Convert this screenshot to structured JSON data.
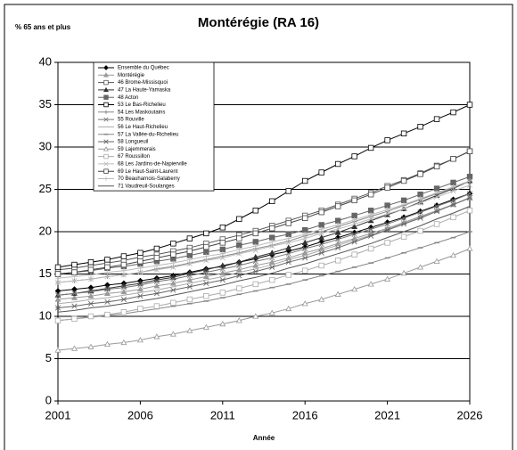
{
  "chart_data": {
    "type": "line",
    "title": "Montérégie (RA 16)",
    "y_label": "% 65 ans et plus",
    "x_label": "Année",
    "x": [
      2001,
      2002,
      2003,
      2004,
      2005,
      2006,
      2007,
      2008,
      2009,
      2010,
      2011,
      2012,
      2013,
      2014,
      2015,
      2016,
      2017,
      2018,
      2019,
      2020,
      2021,
      2022,
      2023,
      2024,
      2025,
      2026
    ],
    "xlim": [
      2001,
      2026
    ],
    "xticks": [
      2001,
      2006,
      2011,
      2016,
      2021,
      2026
    ],
    "ylim": [
      0,
      40
    ],
    "yticks": [
      0,
      5,
      10,
      15,
      20,
      25,
      30,
      35,
      40
    ],
    "grid": true,
    "legend": "upper left",
    "series": [
      {
        "name": "Ensemble du Québec",
        "color": "#000000",
        "marker": "diamond",
        "values": [
          13,
          13.2,
          13.4,
          13.7,
          13.9,
          14.2,
          14.5,
          14.8,
          15.2,
          15.6,
          15.9,
          16.4,
          16.8,
          17.3,
          17.7,
          18.2,
          18.8,
          19.3,
          19.9,
          20.5,
          21.1,
          21.7,
          22.4,
          23.1,
          23.8,
          24.5
        ]
      },
      {
        "name": "Montérégie",
        "color": "#999999",
        "marker": "triangle-filled",
        "values": [
          12,
          12.2,
          12.4,
          12.7,
          12.9,
          13.2,
          13.6,
          13.9,
          14.3,
          14.7,
          15.1,
          15.5,
          16,
          16.4,
          16.9,
          17.5,
          18,
          18.6,
          19.2,
          19.8,
          20.4,
          21.1,
          21.8,
          22.5,
          23.2,
          24
        ]
      },
      {
        "name": "46 Brome-Missisquoi",
        "color": "#555555",
        "marker": "square-dot",
        "values": [
          15.5,
          15.7,
          16,
          16.3,
          16.6,
          17,
          17.3,
          17.7,
          18.1,
          18.6,
          19.1,
          19.6,
          20.1,
          20.7,
          21.3,
          21.9,
          22.5,
          23.2,
          23.9,
          24.6,
          25.4,
          26.1,
          26.9,
          27.8,
          28.6,
          29.5
        ]
      },
      {
        "name": "47 La Haute-Yamaska",
        "color": "#333333",
        "marker": "triangle-filled",
        "values": [
          12.5,
          12.7,
          13,
          13.3,
          13.6,
          13.9,
          14.3,
          14.6,
          15.1,
          15.5,
          16,
          16.4,
          17,
          17.5,
          18.1,
          18.7,
          19.3,
          19.9,
          20.6,
          21.3,
          22,
          22.7,
          23.5,
          24.3,
          25.1,
          26
        ]
      },
      {
        "name": "48 Acton",
        "color": "#666666",
        "marker": "square-filled",
        "values": [
          15,
          15.2,
          15.4,
          15.7,
          15.9,
          16.2,
          16.5,
          16.8,
          17.2,
          17.6,
          17.9,
          18.4,
          18.8,
          19.3,
          19.7,
          20.2,
          20.8,
          21.3,
          21.9,
          22.5,
          23.1,
          23.7,
          24.4,
          25.1,
          25.8,
          26.5
        ]
      },
      {
        "name": "53 Le Bas-Richelieu",
        "color": "#000000",
        "marker": "square",
        "values": [
          15.8,
          16.1,
          16.4,
          16.7,
          17.1,
          17.5,
          18,
          18.6,
          19.2,
          19.8,
          20.5,
          21.5,
          22.5,
          23.6,
          24.8,
          26,
          27,
          28,
          28.9,
          29.9,
          30.8,
          31.6,
          32.4,
          33.3,
          34.1,
          35
        ]
      },
      {
        "name": "54 Les Maskoutains",
        "color": "#888888",
        "marker": "plus",
        "values": [
          14,
          14.2,
          14.4,
          14.7,
          14.9,
          15.2,
          15.6,
          15.9,
          16.3,
          16.7,
          17.1,
          17.5,
          18,
          18.4,
          18.9,
          19.5,
          20,
          20.6,
          21.2,
          21.8,
          22.4,
          23.1,
          23.8,
          24.5,
          25.2,
          26
        ]
      },
      {
        "name": "55 Rouville",
        "color": "#777777",
        "marker": "x",
        "values": [
          12.5,
          12.7,
          12.9,
          13.2,
          13.4,
          13.7,
          14.1,
          14.4,
          14.8,
          15.2,
          15.6,
          16,
          16.5,
          16.9,
          17.4,
          18,
          18.5,
          19.1,
          19.7,
          20.3,
          20.9,
          21.6,
          22.3,
          23,
          23.7,
          24.5
        ]
      },
      {
        "name": "56 Le Haut-Richelieu",
        "color": "#aaaaaa",
        "marker": "none",
        "values": [
          11.5,
          11.7,
          12,
          12.2,
          12.5,
          12.8,
          13.1,
          13.5,
          13.9,
          14.3,
          14.7,
          15.2,
          15.6,
          16.1,
          16.7,
          17.2,
          17.8,
          18.4,
          19,
          19.6,
          20.3,
          21,
          21.7,
          22.5,
          23.2,
          24
        ]
      },
      {
        "name": "57 La Vallée-du-Richelieu",
        "color": "#888888",
        "marker": "dash",
        "values": [
          9.5,
          9.7,
          9.9,
          10.1,
          10.3,
          10.6,
          10.9,
          11.2,
          11.5,
          11.8,
          12.2,
          12.6,
          13,
          13.4,
          13.8,
          14.3,
          14.8,
          15.3,
          15.8,
          16.3,
          16.9,
          17.5,
          18.1,
          18.7,
          19.3,
          20
        ]
      },
      {
        "name": "58 Longueuil",
        "color": "#666666",
        "marker": "star",
        "values": [
          11,
          11.2,
          11.5,
          11.7,
          12,
          12.4,
          12.7,
          13.1,
          13.5,
          13.9,
          14.3,
          14.8,
          15.3,
          15.8,
          16.4,
          16.9,
          17.5,
          18.1,
          18.8,
          19.5,
          20.2,
          20.9,
          21.6,
          22.4,
          23.2,
          24
        ]
      },
      {
        "name": "59 Lajemmerais",
        "color": "#999999",
        "marker": "triangle",
        "values": [
          6,
          6.2,
          6.4,
          6.7,
          6.9,
          7.2,
          7.6,
          7.9,
          8.3,
          8.7,
          9.1,
          9.5,
          10,
          10.4,
          10.9,
          11.5,
          12,
          12.6,
          13.2,
          13.8,
          14.4,
          15.1,
          15.8,
          16.5,
          17.2,
          18
        ]
      },
      {
        "name": "67 Roussillon",
        "color": "#aaaaaa",
        "marker": "square",
        "values": [
          9.5,
          9.7,
          10,
          10.2,
          10.5,
          10.9,
          11.2,
          11.6,
          12,
          12.4,
          12.8,
          13.3,
          13.8,
          14.3,
          14.9,
          15.4,
          16,
          16.6,
          17.3,
          18,
          18.7,
          19.4,
          20.1,
          20.9,
          21.7,
          22.5
        ]
      },
      {
        "name": "68 Les Jardins-de-Napierville",
        "color": "#bbbbbb",
        "marker": "x",
        "values": [
          14,
          14.2,
          14.4,
          14.7,
          14.9,
          15.2,
          15.5,
          15.8,
          16.2,
          16.6,
          16.9,
          17.4,
          17.8,
          18.3,
          18.7,
          19.2,
          19.8,
          20.3,
          20.9,
          21.5,
          22.1,
          22.7,
          23.4,
          24.1,
          24.8,
          25.5
        ]
      },
      {
        "name": "69 Le Haut-Saint-Laurent",
        "color": "#444444",
        "marker": "square-dot",
        "values": [
          15,
          15.2,
          15.5,
          15.8,
          16.1,
          16.5,
          16.9,
          17.3,
          17.7,
          18.2,
          18.7,
          19.2,
          19.8,
          20.4,
          21,
          21.6,
          22.3,
          23,
          23.7,
          24.4,
          25.2,
          26,
          26.8,
          27.7,
          28.6,
          29.5
        ]
      },
      {
        "name": "70 Beauharnois-Salaberry",
        "color": "#bbbbbb",
        "marker": "plus",
        "values": [
          14.5,
          14.7,
          14.9,
          15.2,
          15.4,
          15.7,
          16,
          16.3,
          16.7,
          17.1,
          17.4,
          17.9,
          18.3,
          18.8,
          19.2,
          19.7,
          20.3,
          20.8,
          21.4,
          22,
          22.6,
          23.2,
          23.9,
          24.6,
          25.3,
          26
        ]
      },
      {
        "name": "71 Vaudreuil-Soulanges",
        "color": "#555555",
        "marker": "none",
        "values": [
          10.5,
          10.7,
          11,
          11.2,
          11.5,
          11.8,
          12.1,
          12.5,
          12.9,
          13.3,
          13.7,
          14.2,
          14.6,
          15.1,
          15.7,
          16.2,
          16.8,
          17.4,
          18,
          18.6,
          19.3,
          20,
          20.7,
          21.5,
          22.2,
          23
        ]
      }
    ]
  }
}
